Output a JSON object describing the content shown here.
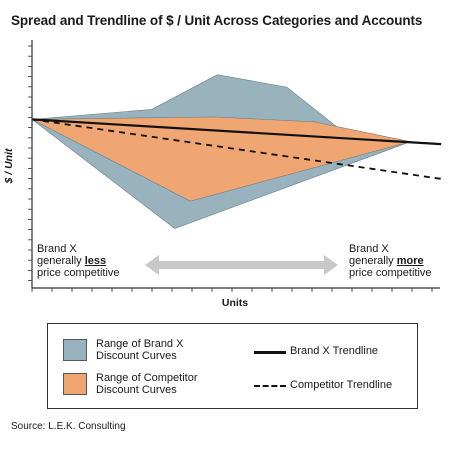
{
  "chart_data": {
    "type": "area",
    "title": "Spread and Trendline of $ / Unit Across Categories and Accounts",
    "xlabel": "Units",
    "ylabel": "$ / Unit",
    "grid": false,
    "legend_placement": "bottom",
    "xlim": [
      0,
      10
    ],
    "ylim": [
      0,
      10
    ],
    "series": [
      {
        "name": "Range of Brand X Discount Curves",
        "kind": "range",
        "color": "#98b3bd",
        "upper": [
          [
            0,
            6.8
          ],
          [
            3.1,
            7.2
          ],
          [
            4.8,
            8.6
          ],
          [
            6.6,
            8.1
          ],
          [
            7.9,
            6.5
          ],
          [
            9.8,
            5.9
          ]
        ],
        "lower": [
          [
            0,
            6.8
          ],
          [
            3.7,
            2.4
          ],
          [
            9.8,
            5.9
          ]
        ]
      },
      {
        "name": "Range of Competitor Discount Curves",
        "kind": "range",
        "color": "#f0a673",
        "upper": [
          [
            0,
            6.8
          ],
          [
            4.7,
            6.9
          ],
          [
            7.3,
            6.7
          ],
          [
            9.8,
            5.9
          ]
        ],
        "lower": [
          [
            0,
            6.8
          ],
          [
            4.1,
            3.5
          ],
          [
            9.8,
            5.9
          ]
        ]
      },
      {
        "name": "Brand X Trendline",
        "kind": "line",
        "style": "solid",
        "points": [
          [
            0,
            6.8
          ],
          [
            10.6,
            5.8
          ]
        ]
      },
      {
        "name": "Competitor Trendline",
        "kind": "line",
        "style": "dashed",
        "points": [
          [
            0,
            6.8
          ],
          [
            10.6,
            4.4
          ]
        ]
      }
    ]
  },
  "annotations": {
    "left": {
      "line1": "Brand X",
      "line2a": "generally ",
      "line2b": "less",
      "line3": "price competitive"
    },
    "right": {
      "line1": "Brand X",
      "line2a": "generally ",
      "line2b": "more",
      "line3": "price competitive"
    }
  },
  "legend": {
    "brand_range": {
      "line1": "Range of Brand X",
      "line2": "Discount Curves"
    },
    "comp_range": {
      "line1": "Range of Competitor",
      "line2": "Discount Curves"
    },
    "brand_trend": "Brand X Trendline",
    "comp_trend": "Competitor Trendline"
  },
  "source": "Source: L.E.K. Consulting",
  "colors": {
    "brand_fill": "#98b3bd",
    "comp_fill": "#f0a673",
    "arrow": "#c8c8c8",
    "axis": "#333333"
  }
}
